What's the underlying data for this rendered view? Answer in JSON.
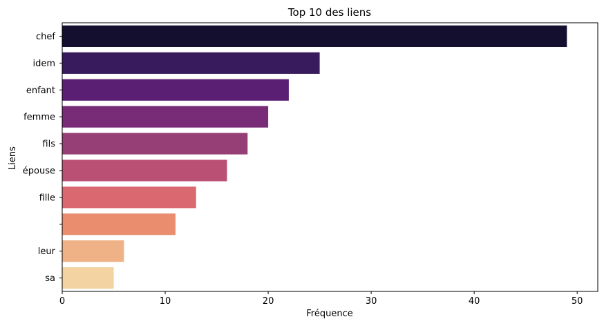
{
  "chart_data": {
    "type": "bar",
    "orientation": "horizontal",
    "title": "Top 10 des liens",
    "xlabel": "Fréquence",
    "ylabel": "Liens",
    "categories": [
      "chef",
      "idem",
      "enfant",
      "femme",
      "fils",
      "épouse",
      "fille",
      "",
      "leur",
      "sa"
    ],
    "values": [
      49,
      25,
      22,
      20,
      18,
      16,
      13,
      11,
      6,
      5
    ],
    "colors": [
      "#140f2e",
      "#371b5c",
      "#5a1e73",
      "#782b76",
      "#963f77",
      "#ba5174",
      "#da6871",
      "#e98d6e",
      "#efb286",
      "#f3d3a2"
    ],
    "xlim": [
      0,
      52
    ],
    "xticks": [
      0,
      10,
      20,
      30,
      40,
      50
    ],
    "grid": false
  }
}
